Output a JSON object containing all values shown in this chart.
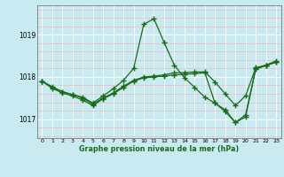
{
  "xlabel": "Graphe pression niveau de la mer (hPa)",
  "bg_color": "#c8eaf0",
  "grid_major_color": "#ffffff",
  "grid_minor_color": "#f5b8b8",
  "line_color": "#1a6b1a",
  "marker": "+",
  "markersize": 4,
  "linewidth": 0.9,
  "xlim": [
    -0.5,
    23.5
  ],
  "ylim": [
    1016.55,
    1019.7
  ],
  "yticks": [
    1017,
    1018,
    1019
  ],
  "xticks": [
    0,
    1,
    2,
    3,
    4,
    5,
    6,
    7,
    8,
    9,
    10,
    11,
    12,
    13,
    14,
    15,
    16,
    17,
    18,
    19,
    20,
    21,
    22,
    23
  ],
  "line1_x": [
    0,
    1,
    2,
    3,
    4,
    5,
    6,
    7,
    8,
    9,
    10,
    11,
    12,
    13,
    14,
    15,
    16,
    17,
    18,
    19,
    20,
    21,
    22,
    23
  ],
  "line1_y": [
    1017.9,
    1017.75,
    1017.65,
    1017.58,
    1017.52,
    1017.38,
    1017.55,
    1017.72,
    1017.92,
    1018.2,
    1019.25,
    1019.38,
    1018.82,
    1018.28,
    1017.98,
    1017.75,
    1017.52,
    1017.38,
    1017.18,
    1016.92,
    1017.05,
    1018.2,
    1018.28,
    1018.35
  ],
  "line2_x": [
    0,
    1,
    2,
    3,
    4,
    5,
    6,
    7,
    8,
    9,
    10,
    11,
    12,
    13,
    14,
    15,
    16,
    17,
    18,
    19,
    20,
    21,
    22,
    23
  ],
  "line2_y": [
    1017.9,
    1017.77,
    1017.65,
    1017.58,
    1017.5,
    1017.35,
    1017.5,
    1017.62,
    1017.78,
    1017.92,
    1018.0,
    1018.02,
    1018.05,
    1018.1,
    1018.1,
    1018.12,
    1018.12,
    1017.88,
    1017.6,
    1017.32,
    1017.55,
    1018.22,
    1018.28,
    1018.38
  ],
  "line3_x": [
    0,
    1,
    2,
    3,
    4,
    5,
    6,
    7,
    8,
    9,
    10,
    11,
    12,
    13,
    14,
    15,
    16,
    17,
    18,
    19,
    20,
    21,
    22,
    23
  ],
  "line3_y": [
    1017.9,
    1017.73,
    1017.62,
    1017.55,
    1017.45,
    1017.32,
    1017.48,
    1017.6,
    1017.75,
    1017.9,
    1017.98,
    1018.0,
    1018.02,
    1018.05,
    1018.06,
    1018.08,
    1018.1,
    1017.38,
    1017.22,
    1016.92,
    1017.1,
    1018.18,
    1018.27,
    1018.35
  ]
}
